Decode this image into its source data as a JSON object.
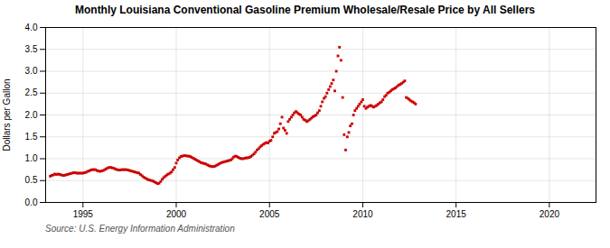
{
  "chart_data": {
    "type": "scatter",
    "title": "Monthly Louisiana Conventional Gasoline Premium Wholesale/Resale Price by All Sellers",
    "ylabel": "Dollars per Gallon",
    "source": "Source: U.S. Energy Information Administration",
    "color": "#cc0000",
    "marker": "square",
    "grid": true,
    "xlim": [
      1993.0,
      2022.5
    ],
    "ylim": [
      0.0,
      4.0
    ],
    "xticks": [
      1995,
      2000,
      2005,
      2010,
      2015,
      2020
    ],
    "yticks": [
      {
        "value": 0.0,
        "label": "0.0"
      },
      0.5,
      {
        "value": 1.0,
        "label": "1.0"
      },
      1.5,
      {
        "value": 2.0,
        "label": "2.0"
      },
      2.5,
      {
        "value": 3.0,
        "label": "3.0"
      },
      3.5,
      {
        "value": 4.0,
        "label": "4.0"
      }
    ],
    "x": [
      1993.25,
      1993.33,
      1993.42,
      1993.5,
      1993.58,
      1993.67,
      1993.75,
      1993.83,
      1993.92,
      1994.0,
      1994.08,
      1994.17,
      1994.25,
      1994.33,
      1994.42,
      1994.5,
      1994.58,
      1994.67,
      1994.75,
      1994.83,
      1994.92,
      1995.0,
      1995.08,
      1995.17,
      1995.25,
      1995.33,
      1995.42,
      1995.5,
      1995.58,
      1995.67,
      1995.75,
      1995.83,
      1995.92,
      1996.0,
      1996.08,
      1996.17,
      1996.25,
      1996.33,
      1996.42,
      1996.5,
      1996.58,
      1996.67,
      1996.75,
      1996.83,
      1996.92,
      1997.0,
      1997.08,
      1997.17,
      1997.25,
      1997.33,
      1997.42,
      1997.5,
      1997.58,
      1997.67,
      1997.75,
      1997.83,
      1997.92,
      1998.0,
      1998.08,
      1998.17,
      1998.25,
      1998.33,
      1998.42,
      1998.5,
      1998.58,
      1998.67,
      1998.75,
      1998.83,
      1998.92,
      1999.0,
      1999.08,
      1999.17,
      1999.25,
      1999.33,
      1999.42,
      1999.5,
      1999.58,
      1999.67,
      1999.75,
      1999.83,
      1999.92,
      2000.0,
      2000.08,
      2000.17,
      2000.25,
      2000.33,
      2000.42,
      2000.5,
      2000.58,
      2000.67,
      2000.75,
      2000.83,
      2000.92,
      2001.0,
      2001.08,
      2001.17,
      2001.25,
      2001.33,
      2001.42,
      2001.5,
      2001.58,
      2001.67,
      2001.75,
      2001.83,
      2001.92,
      2002.0,
      2002.08,
      2002.17,
      2002.25,
      2002.33,
      2002.42,
      2002.5,
      2002.58,
      2002.67,
      2002.75,
      2002.83,
      2002.92,
      2003.0,
      2003.08,
      2003.17,
      2003.25,
      2003.33,
      2003.42,
      2003.5,
      2003.58,
      2003.67,
      2003.75,
      2003.83,
      2003.92,
      2004.0,
      2004.08,
      2004.17,
      2004.25,
      2004.33,
      2004.42,
      2004.5,
      2004.58,
      2004.67,
      2004.75,
      2004.83,
      2004.92,
      2005.0,
      2005.08,
      2005.17,
      2005.25,
      2005.33,
      2005.42,
      2005.5,
      2005.58,
      2005.67,
      2005.75,
      2005.83,
      2005.92,
      2006.0,
      2006.08,
      2006.17,
      2006.25,
      2006.33,
      2006.42,
      2006.5,
      2006.58,
      2006.67,
      2006.75,
      2006.83,
      2006.92,
      2007.0,
      2007.08,
      2007.17,
      2007.25,
      2007.33,
      2007.42,
      2007.5,
      2007.58,
      2007.67,
      2007.75,
      2007.83,
      2007.92,
      2008.0,
      2008.08,
      2008.17,
      2008.25,
      2008.33,
      2008.42,
      2008.5,
      2008.58,
      2008.67,
      2008.75,
      2008.83,
      2008.92,
      2009.0,
      2009.08,
      2009.17,
      2009.25,
      2009.33,
      2009.42,
      2009.5,
      2009.58,
      2009.67,
      2009.75,
      2009.83,
      2009.92,
      2010.0,
      2010.08,
      2010.17,
      2010.25,
      2010.33,
      2010.42,
      2010.5,
      2010.58,
      2010.67,
      2010.75,
      2010.83,
      2010.92,
      2011.0,
      2011.08,
      2011.17,
      2011.25,
      2011.33,
      2011.42,
      2011.5,
      2011.58,
      2011.67,
      2011.75,
      2011.83,
      2011.92,
      2012.0,
      2012.08,
      2012.17,
      2012.25,
      2012.33,
      2012.42,
      2012.5,
      2012.58,
      2012.67,
      2012.75,
      2012.83
    ],
    "values": [
      0.6,
      0.62,
      0.63,
      0.65,
      0.64,
      0.65,
      0.64,
      0.63,
      0.62,
      0.62,
      0.63,
      0.64,
      0.65,
      0.66,
      0.67,
      0.68,
      0.68,
      0.67,
      0.67,
      0.67,
      0.67,
      0.67,
      0.68,
      0.69,
      0.71,
      0.72,
      0.74,
      0.75,
      0.75,
      0.75,
      0.73,
      0.72,
      0.71,
      0.72,
      0.73,
      0.75,
      0.77,
      0.79,
      0.8,
      0.8,
      0.79,
      0.78,
      0.76,
      0.75,
      0.74,
      0.74,
      0.75,
      0.75,
      0.75,
      0.75,
      0.74,
      0.73,
      0.72,
      0.71,
      0.7,
      0.69,
      0.68,
      0.67,
      0.64,
      0.61,
      0.58,
      0.56,
      0.54,
      0.52,
      0.51,
      0.5,
      0.49,
      0.47,
      0.45,
      0.43,
      0.44,
      0.48,
      0.53,
      0.57,
      0.6,
      0.63,
      0.65,
      0.67,
      0.7,
      0.75,
      0.8,
      0.9,
      0.97,
      1.02,
      1.05,
      1.06,
      1.07,
      1.07,
      1.06,
      1.06,
      1.05,
      1.03,
      1.01,
      0.99,
      0.97,
      0.95,
      0.93,
      0.91,
      0.9,
      0.89,
      0.88,
      0.86,
      0.84,
      0.83,
      0.82,
      0.82,
      0.83,
      0.85,
      0.87,
      0.89,
      0.91,
      0.92,
      0.93,
      0.94,
      0.95,
      0.96,
      0.97,
      1.0,
      1.04,
      1.06,
      1.05,
      1.03,
      1.01,
      1.0,
      1.0,
      1.01,
      1.02,
      1.02,
      1.03,
      1.05,
      1.08,
      1.11,
      1.15,
      1.2,
      1.23,
      1.27,
      1.3,
      1.33,
      1.35,
      1.37,
      1.36,
      1.4,
      1.42,
      1.5,
      1.58,
      1.6,
      1.62,
      1.68,
      1.8,
      1.95,
      1.7,
      1.65,
      1.58,
      1.85,
      1.9,
      1.95,
      2.0,
      2.05,
      2.08,
      2.05,
      2.02,
      2.0,
      1.95,
      1.9,
      1.88,
      1.85,
      1.87,
      1.9,
      1.93,
      1.96,
      1.98,
      2.0,
      2.05,
      2.1,
      2.2,
      2.3,
      2.38,
      2.42,
      2.5,
      2.58,
      2.65,
      2.72,
      2.8,
      2.55,
      3.0,
      3.35,
      3.55,
      3.25,
      2.4,
      1.55,
      1.2,
      1.5,
      1.6,
      1.75,
      1.8,
      2.0,
      2.1,
      2.15,
      2.2,
      2.25,
      2.3,
      2.35,
      2.2,
      2.15,
      2.18,
      2.2,
      2.22,
      2.2,
      2.18,
      2.2,
      2.22,
      2.25,
      2.28,
      2.3,
      2.35,
      2.42,
      2.45,
      2.5,
      2.52,
      2.55,
      2.58,
      2.6,
      2.62,
      2.65,
      2.68,
      2.7,
      2.72,
      2.75,
      2.78,
      2.4,
      2.38,
      2.35,
      2.32,
      2.3,
      2.28,
      2.25
    ]
  }
}
